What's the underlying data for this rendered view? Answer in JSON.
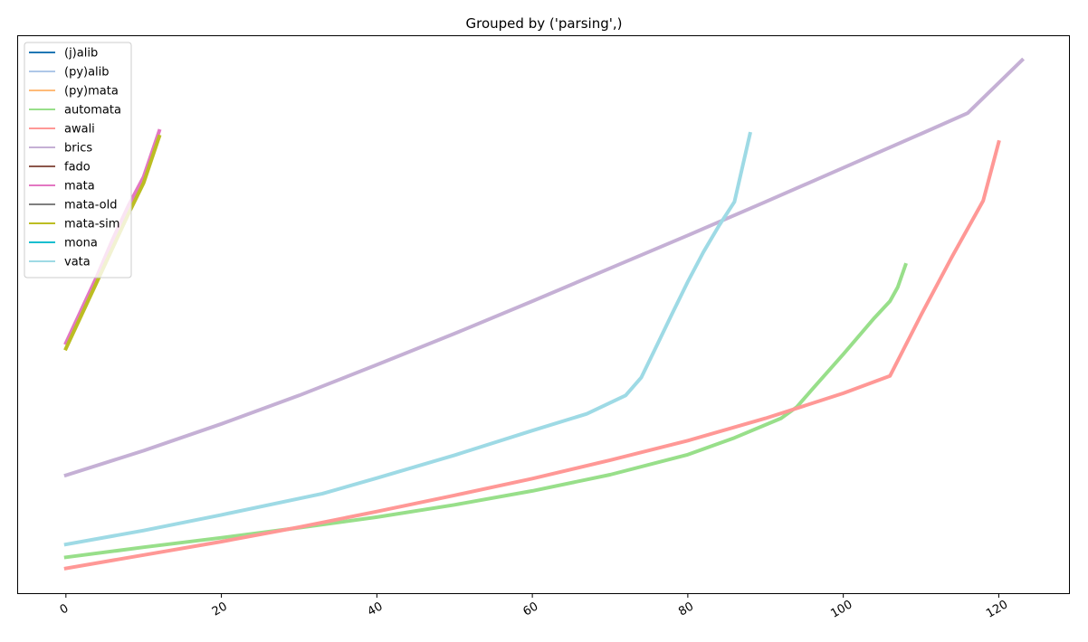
{
  "chart_data": {
    "type": "line",
    "title": "Grouped by ('parsing',)",
    "xlabel": "",
    "ylabel": "",
    "xlim": [
      -6.15,
      129.15
    ],
    "ylim": [
      0,
      100
    ],
    "y_ticks_visible": false,
    "grid": false,
    "legend_position": "top-left",
    "x_ticks": [
      0,
      20,
      40,
      60,
      80,
      100,
      120
    ],
    "x_tick_labels": [
      "0",
      "20",
      "40",
      "60",
      "80",
      "100",
      "120"
    ],
    "series": [
      {
        "name": "(j)alib",
        "color": "#1f77b4",
        "points": []
      },
      {
        "name": "(py)alib",
        "color": "#aec7e8",
        "points": []
      },
      {
        "name": "(py)mata",
        "color": "#ffbb78",
        "points": []
      },
      {
        "name": "automata",
        "color": "#98df8a",
        "points": [
          [
            0,
            6.6
          ],
          [
            10,
            8.4
          ],
          [
            20,
            10.1
          ],
          [
            30,
            11.9
          ],
          [
            40,
            13.8
          ],
          [
            50,
            16.0
          ],
          [
            60,
            18.5
          ],
          [
            70,
            21.4
          ],
          [
            80,
            25.0
          ],
          [
            86,
            28.0
          ],
          [
            92,
            31.5
          ],
          [
            94,
            33.5
          ],
          [
            96,
            36.7
          ],
          [
            100,
            43.0
          ],
          [
            104,
            49.5
          ],
          [
            106,
            52.5
          ],
          [
            107,
            55.0
          ],
          [
            108,
            59.0
          ]
        ]
      },
      {
        "name": "awali",
        "color": "#ff9896",
        "points": [
          [
            0,
            4.6
          ],
          [
            10,
            7.0
          ],
          [
            20,
            9.4
          ],
          [
            30,
            12.0
          ],
          [
            40,
            14.8
          ],
          [
            50,
            17.7
          ],
          [
            60,
            20.7
          ],
          [
            70,
            24.0
          ],
          [
            80,
            27.5
          ],
          [
            90,
            31.5
          ],
          [
            100,
            36.0
          ],
          [
            106,
            39.1
          ],
          [
            110,
            50.0
          ],
          [
            114,
            60.5
          ],
          [
            118,
            70.5
          ],
          [
            120,
            81.0
          ]
        ]
      },
      {
        "name": "brics",
        "color": "#c5b0d5",
        "points": [
          [
            0,
            21.3
          ],
          [
            10,
            25.7
          ],
          [
            20,
            30.5
          ],
          [
            30,
            35.6
          ],
          [
            40,
            41.1
          ],
          [
            50,
            46.7
          ],
          [
            60,
            52.5
          ],
          [
            70,
            58.4
          ],
          [
            80,
            64.3
          ],
          [
            90,
            70.3
          ],
          [
            100,
            76.4
          ],
          [
            110,
            82.5
          ],
          [
            116,
            86.2
          ],
          [
            123,
            95.7
          ]
        ]
      },
      {
        "name": "fado",
        "color": "#8c564b",
        "points": []
      },
      {
        "name": "mata",
        "color": "#e377c2",
        "points": [
          [
            0,
            45.0
          ],
          [
            2,
            51.0
          ],
          [
            4,
            57.0
          ],
          [
            6,
            63.5
          ],
          [
            8,
            69.5
          ],
          [
            10,
            74.8
          ],
          [
            12,
            83.0
          ]
        ]
      },
      {
        "name": "mata-old",
        "color": "#7f7f7f",
        "points": []
      },
      {
        "name": "mata-sim",
        "color": "#bcbd22",
        "points": [
          [
            0,
            44.0
          ],
          [
            2,
            50.0
          ],
          [
            4,
            56.0
          ],
          [
            6,
            62.0
          ],
          [
            8,
            68.0
          ],
          [
            10,
            73.7
          ],
          [
            12,
            82.0
          ]
        ]
      },
      {
        "name": "mona",
        "color": "#17becf",
        "points": []
      },
      {
        "name": "vata",
        "color": "#9edae5",
        "points": [
          [
            0,
            8.9
          ],
          [
            10,
            11.4
          ],
          [
            20,
            14.2
          ],
          [
            33,
            18.0
          ],
          [
            40,
            20.8
          ],
          [
            50,
            24.9
          ],
          [
            60,
            29.3
          ],
          [
            67,
            32.3
          ],
          [
            72,
            35.6
          ],
          [
            74,
            38.8
          ],
          [
            76,
            44.5
          ],
          [
            78,
            50.3
          ],
          [
            80,
            56.0
          ],
          [
            82,
            61.3
          ],
          [
            84,
            66.0
          ],
          [
            86,
            70.3
          ],
          [
            88,
            82.5
          ]
        ]
      }
    ]
  }
}
